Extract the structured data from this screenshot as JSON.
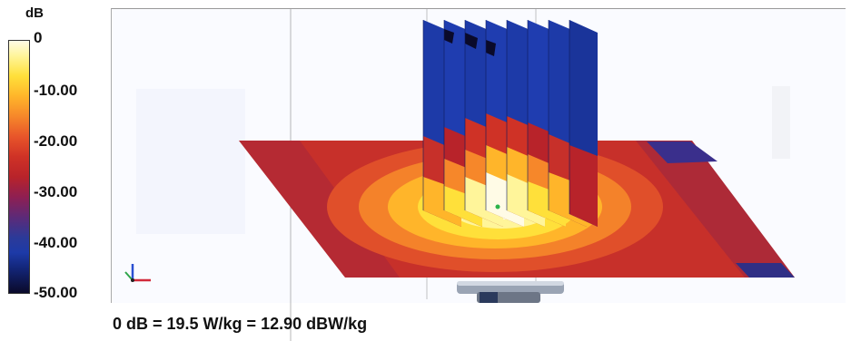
{
  "legend": {
    "unit": "dB",
    "ticks": [
      "0",
      "-10.00",
      "-20.00",
      "-30.00",
      "-40.00",
      "-50.00"
    ]
  },
  "footer": {
    "text": "0 dB = 19.5 W/kg = 12.90 dBW/kg"
  },
  "colors": {
    "peak": "#fffbe6",
    "yellow": "#ffe03a",
    "orange": "#f6872a",
    "red": "#cf3226",
    "purple": "#7a2466",
    "blue": "#1d3aa8",
    "black": "#0a0a2a"
  }
}
